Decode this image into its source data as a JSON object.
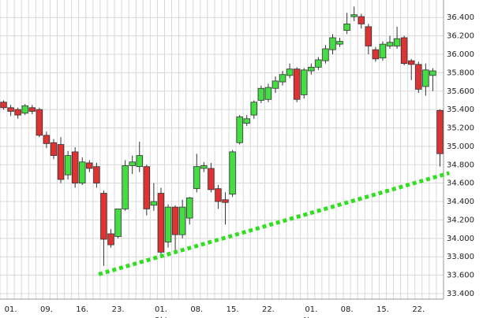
{
  "chart_data": {
    "type": "candlestick",
    "categories": [
      null,
      "01.",
      null,
      null,
      null,
      null,
      "09.",
      null,
      null,
      null,
      null,
      "16.",
      null,
      null,
      null,
      null,
      "23.",
      null,
      null,
      null,
      null,
      null,
      "01.",
      null,
      null,
      null,
      null,
      "08.",
      null,
      null,
      null,
      null,
      "15.",
      null,
      null,
      null,
      null,
      "22.",
      null,
      null,
      null,
      null,
      null,
      "01.",
      null,
      null,
      null,
      null,
      "08.",
      null,
      null,
      null,
      null,
      "15.",
      null,
      null,
      null,
      null,
      "22.",
      null,
      null,
      null
    ],
    "month_categories": [
      null,
      null,
      null,
      null,
      null,
      null,
      null,
      null,
      null,
      null,
      null,
      null,
      null,
      null,
      null,
      null,
      null,
      null,
      null,
      null,
      null,
      null,
      "Okt",
      null,
      null,
      null,
      null,
      null,
      null,
      null,
      null,
      null,
      null,
      null,
      null,
      null,
      null,
      null,
      null,
      null,
      null,
      null,
      null,
      "Nov",
      null,
      null,
      null,
      null,
      null,
      null,
      null,
      null,
      null,
      null,
      null,
      null,
      null,
      null,
      null,
      null,
      null,
      null
    ],
    "open": [
      35.48,
      35.42,
      35.4,
      35.36,
      35.42,
      35.4,
      35.12,
      35.04,
      35.02,
      34.69,
      34.94,
      34.6,
      34.82,
      34.78,
      34.49,
      34.05,
      34.02,
      34.32,
      34.79,
      34.78,
      34.78,
      34.36,
      34.49,
      33.96,
      34.34,
      34.04,
      34.22,
      34.54,
      34.76,
      34.76,
      34.54,
      34.42,
      34.48,
      35.04,
      35.25,
      35.34,
      35.5,
      35.51,
      35.63,
      35.7,
      35.77,
      35.84,
      35.56,
      35.82,
      35.86,
      35.93,
      36.05,
      36.11,
      36.26,
      36.41,
      36.41,
      36.3,
      36.05,
      35.96,
      36.09,
      36.09,
      36.18,
      35.93,
      35.89,
      35.65,
      35.77,
      35.39
    ],
    "high": [
      35.5,
      35.45,
      35.42,
      35.46,
      35.45,
      35.42,
      35.16,
      35.08,
      35.1,
      34.95,
      34.99,
      34.88,
      34.85,
      34.82,
      34.52,
      34.1,
      34.32,
      34.85,
      34.9,
      35.05,
      34.8,
      34.6,
      34.55,
      34.37,
      34.36,
      34.42,
      34.45,
      34.92,
      34.83,
      34.82,
      34.58,
      34.5,
      34.96,
      35.34,
      35.34,
      35.5,
      35.66,
      35.68,
      35.76,
      35.82,
      35.9,
      35.86,
      35.85,
      35.9,
      35.97,
      36.1,
      36.22,
      36.18,
      36.45,
      36.52,
      36.44,
      36.33,
      36.08,
      36.14,
      36.2,
      36.3,
      36.2,
      35.95,
      35.92,
      35.9,
      35.85,
      35.4
    ],
    "low": [
      35.4,
      35.33,
      35.3,
      35.34,
      35.35,
      35.1,
      34.98,
      34.86,
      34.6,
      34.64,
      34.55,
      34.58,
      34.72,
      34.55,
      33.7,
      33.9,
      34.0,
      34.3,
      34.7,
      34.72,
      34.25,
      34.3,
      33.8,
      33.9,
      33.85,
      34.0,
      34.15,
      34.5,
      34.72,
      34.5,
      34.32,
      34.15,
      34.45,
      35.02,
      35.22,
      35.3,
      35.47,
      35.48,
      35.58,
      35.66,
      35.74,
      35.48,
      35.52,
      35.78,
      35.83,
      35.9,
      36.0,
      36.08,
      36.22,
      36.36,
      36.28,
      36.0,
      35.92,
      35.93,
      36.06,
      36.06,
      35.88,
      35.72,
      35.58,
      35.55,
      35.6,
      34.78
    ],
    "close": [
      35.42,
      35.38,
      35.34,
      35.44,
      35.38,
      35.12,
      35.03,
      34.9,
      34.64,
      34.9,
      34.6,
      34.83,
      34.76,
      34.6,
      33.99,
      33.93,
      34.32,
      34.79,
      34.83,
      34.9,
      34.32,
      34.4,
      33.85,
      34.34,
      34.04,
      34.34,
      34.44,
      34.78,
      34.79,
      34.53,
      34.4,
      34.39,
      34.94,
      35.32,
      35.3,
      35.48,
      35.63,
      35.64,
      35.71,
      35.78,
      35.84,
      35.51,
      35.83,
      35.86,
      35.94,
      36.06,
      36.18,
      36.14,
      36.33,
      36.43,
      36.33,
      36.09,
      35.95,
      36.11,
      36.13,
      36.17,
      35.9,
      35.89,
      35.62,
      35.83,
      35.82,
      34.92
    ],
    "up_color": "#44dd44",
    "down_color": "#dd3333",
    "trendline": {
      "x": [
        13.3,
        62.3
      ],
      "values": [
        33.61,
        34.71
      ],
      "color": "#33dd22"
    },
    "ylim": [
      33.34,
      36.59
    ],
    "yticks": [
      {
        "value": 33.4,
        "label": "33.400"
      },
      {
        "value": 33.6,
        "label": "33.600"
      },
      {
        "value": 33.8,
        "label": "33.800"
      },
      {
        "value": 34.0,
        "label": "34.000"
      },
      {
        "value": 34.2,
        "label": "34.200"
      },
      {
        "value": 34.4,
        "label": "34.400"
      },
      {
        "value": 34.6,
        "label": "34.600"
      },
      {
        "value": 34.8,
        "label": "34.800"
      },
      {
        "value": 35.0,
        "label": "35.000"
      },
      {
        "value": 35.2,
        "label": "35.200"
      },
      {
        "value": 35.4,
        "label": "35.400"
      },
      {
        "value": 35.6,
        "label": "35.600"
      },
      {
        "value": 35.8,
        "label": "35.800"
      },
      {
        "value": 36.0,
        "label": "36.000"
      },
      {
        "value": 36.2,
        "label": "36.200"
      },
      {
        "value": 36.4,
        "label": "36.400"
      }
    ],
    "grid": true
  }
}
